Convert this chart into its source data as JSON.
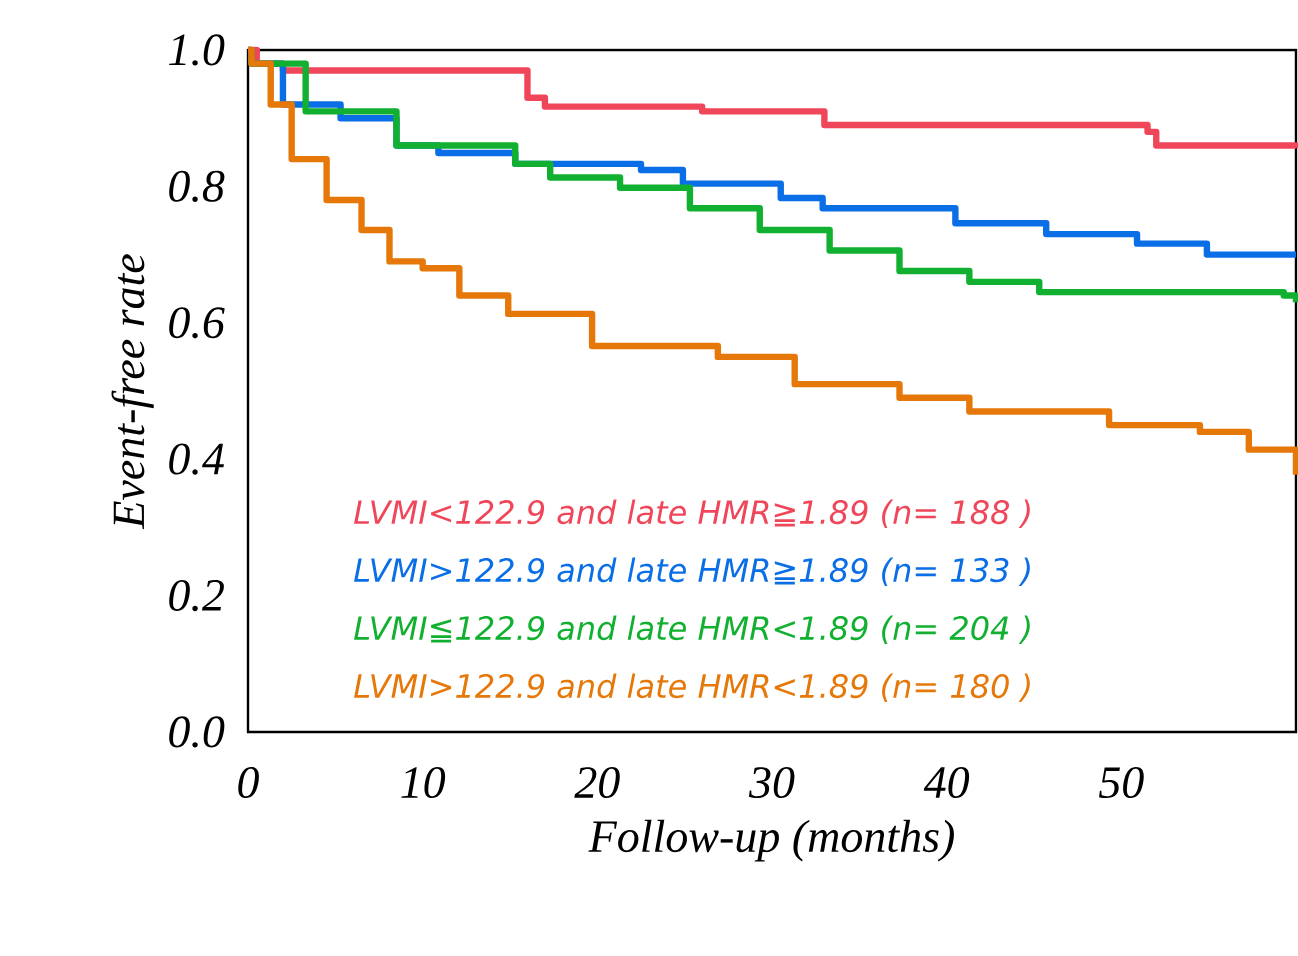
{
  "chart_data": {
    "type": "step",
    "xlabel": "Follow-up (months)",
    "ylabel": "Event-free rate",
    "xlim": [
      0,
      60
    ],
    "xticks": [
      0,
      10,
      20,
      30,
      40,
      50
    ],
    "ylim": [
      0,
      1
    ],
    "yticks": [
      {
        "value": 0,
        "label": "0.0"
      },
      {
        "value": 0.2,
        "label": "0.2"
      },
      {
        "value": 0.4,
        "label": "0.4"
      },
      {
        "value": 0.6,
        "label": "0.6"
      },
      {
        "value": 0.8,
        "label": "0.8"
      },
      {
        "value": 1,
        "label": "1.0"
      }
    ],
    "grid": false,
    "series": [
      {
        "name": "LVMI<122.9 and late HMR≧1.89 (n= 188 )",
        "color": "#f0465a",
        "x": [
          0,
          0.5,
          2,
          15.5,
          16,
          17,
          26,
          33,
          51.5,
          52,
          60
        ],
        "values": [
          1.0,
          0.98,
          0.97,
          0.97,
          0.93,
          0.917,
          0.91,
          0.89,
          0.88,
          0.86,
          0.856
        ]
      },
      {
        "name": "LVMI>122.9 and late HMR≧1.89 (n= 133 )",
        "color": "#0a6ee6",
        "x": [
          0,
          0.2,
          2,
          5.3,
          8.5,
          10.9,
          15.3,
          22.5,
          24.9,
          30.5,
          32.9,
          40.5,
          45.7,
          50.9,
          54.9,
          60
        ],
        "values": [
          1.0,
          0.98,
          0.92,
          0.9,
          0.86,
          0.849,
          0.833,
          0.824,
          0.804,
          0.783,
          0.768,
          0.746,
          0.73,
          0.716,
          0.7,
          0.7
        ]
      },
      {
        "name": "LVMI≦122.9 and late HMR<1.89 (n= 204 )",
        "color": "#12b030",
        "x": [
          0,
          0.2,
          3.3,
          8.5,
          15.3,
          17.3,
          21.3,
          25.3,
          29.3,
          33.3,
          37.3,
          41.3,
          45.3,
          59.3,
          60
        ],
        "values": [
          1.0,
          0.98,
          0.91,
          0.86,
          0.833,
          0.813,
          0.798,
          0.768,
          0.736,
          0.706,
          0.676,
          0.66,
          0.645,
          0.64,
          0.63
        ]
      },
      {
        "name": "LVMI>122.9 and late HMR<1.89 (n= 180 )",
        "color": "#e6780a",
        "x": [
          0,
          0.2,
          1.3,
          2.5,
          4.5,
          6.5,
          8.1,
          10,
          12.1,
          14.9,
          19.7,
          26.9,
          31.3,
          37.3,
          41.3,
          49.3,
          54.5,
          57.3,
          60
        ],
        "values": [
          1.0,
          0.98,
          0.92,
          0.84,
          0.78,
          0.736,
          0.69,
          0.68,
          0.64,
          0.613,
          0.566,
          0.55,
          0.51,
          0.49,
          0.47,
          0.45,
          0.44,
          0.414,
          0.377
        ]
      }
    ]
  }
}
